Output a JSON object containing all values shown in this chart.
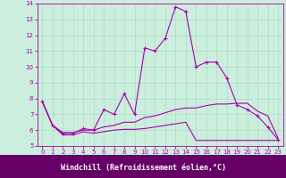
{
  "xlabel": "Windchill (Refroidissement éolien,°C)",
  "bg_color": "#cceedd",
  "line_color": "#aa00aa",
  "xlabel_bg": "#660066",
  "xlabel_fg": "#ffffff",
  "xlim": [
    -0.5,
    23.5
  ],
  "ylim": [
    5,
    14
  ],
  "yticks": [
    5,
    6,
    7,
    8,
    9,
    10,
    11,
    12,
    13,
    14
  ],
  "xticks": [
    0,
    1,
    2,
    3,
    4,
    5,
    6,
    7,
    8,
    9,
    10,
    11,
    12,
    13,
    14,
    15,
    16,
    17,
    18,
    19,
    20,
    21,
    22,
    23
  ],
  "series1_x": [
    0,
    1,
    2,
    3,
    4,
    5,
    6,
    7,
    8,
    9,
    10,
    11,
    12,
    13,
    14,
    15,
    16,
    17,
    18,
    19,
    20,
    21,
    22,
    23
  ],
  "series1_y": [
    7.8,
    6.3,
    5.8,
    5.8,
    6.1,
    6.0,
    7.3,
    7.0,
    8.3,
    7.0,
    11.2,
    11.0,
    11.8,
    13.8,
    13.5,
    10.0,
    10.3,
    10.3,
    9.3,
    7.6,
    7.3,
    6.9,
    6.2,
    5.4
  ],
  "series2_x": [
    0,
    1,
    2,
    3,
    4,
    5,
    6,
    7,
    8,
    9,
    10,
    11,
    12,
    13,
    14,
    15,
    16,
    17,
    18,
    19,
    20,
    21,
    22,
    23
  ],
  "series2_y": [
    7.8,
    6.3,
    5.85,
    5.85,
    6.0,
    6.0,
    6.2,
    6.3,
    6.5,
    6.5,
    6.8,
    6.9,
    7.1,
    7.3,
    7.4,
    7.4,
    7.55,
    7.65,
    7.65,
    7.7,
    7.7,
    7.2,
    6.9,
    5.5
  ],
  "series3_x": [
    0,
    1,
    2,
    3,
    4,
    5,
    6,
    7,
    8,
    9,
    10,
    11,
    12,
    13,
    14,
    15,
    16,
    17,
    18,
    19,
    20,
    21,
    22,
    23
  ],
  "series3_y": [
    7.8,
    6.3,
    5.7,
    5.7,
    5.9,
    5.8,
    5.9,
    6.0,
    6.05,
    6.05,
    6.1,
    6.2,
    6.3,
    6.4,
    6.5,
    5.35,
    5.35,
    5.35,
    5.35,
    5.35,
    5.35,
    5.35,
    5.35,
    5.35
  ],
  "grid_color": "#aaddcc",
  "tick_fontsize": 5,
  "xlabel_fontsize": 6
}
